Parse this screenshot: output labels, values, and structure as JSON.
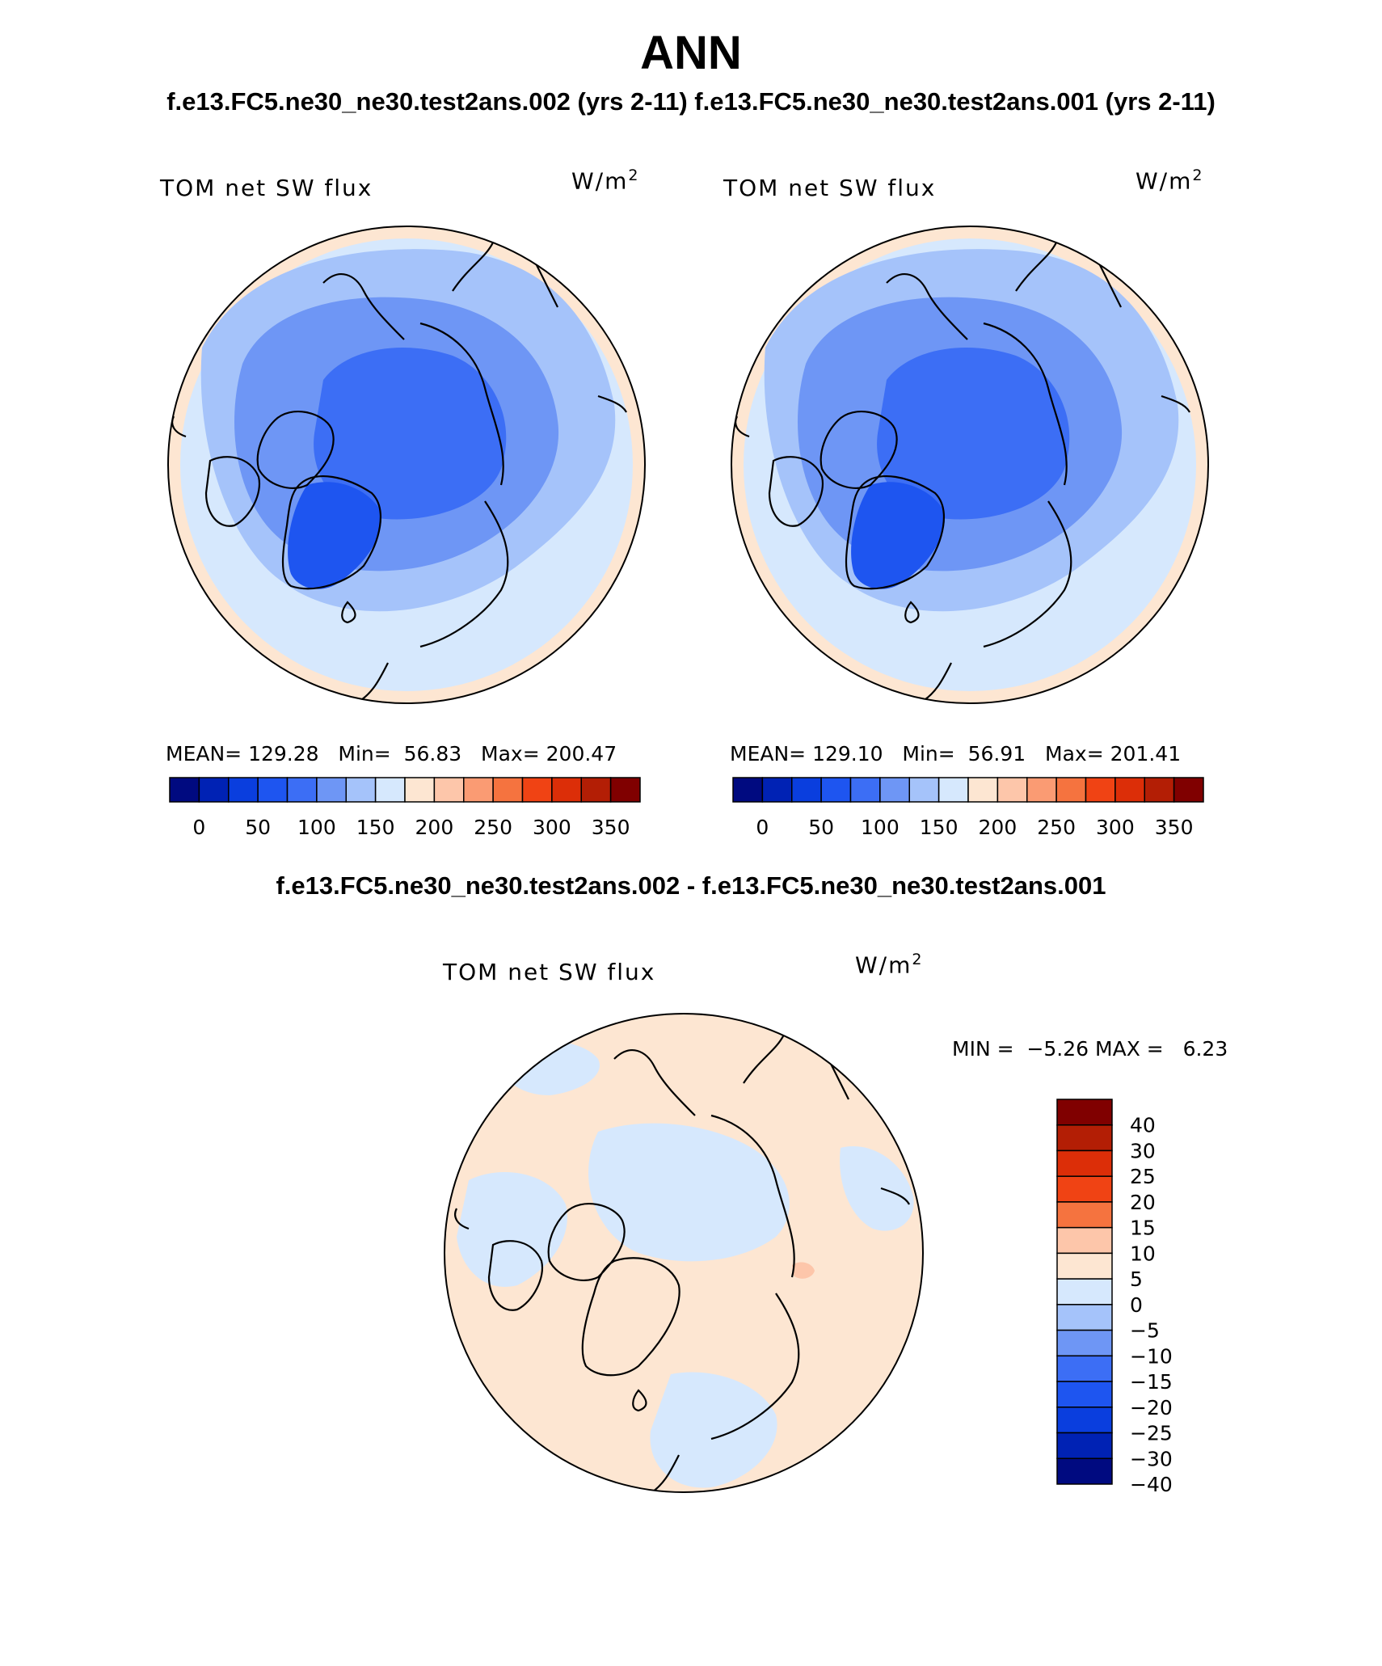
{
  "title": "ANN",
  "subtitle": "f.e13.FC5.ne30_ne30.test2ans.002 (yrs 2-11) f.e13.FC5.ne30_ne30.test2ans.001 (yrs 2-11)",
  "diff_title": "f.e13.FC5.ne30_ne30.test2ans.002 - f.e13.FC5.ne30_ne30.test2ans.001",
  "panels": [
    {
      "label": "TOM net SW flux",
      "units_base": "W/m",
      "units_exp": "2",
      "mean_label": "MEAN=",
      "mean": "129.28",
      "min_label": "Min=",
      "min": "56.83",
      "max_label": "Max=",
      "max": "200.47"
    },
    {
      "label": "TOM net SW flux",
      "units_base": "W/m",
      "units_exp": "2",
      "mean_label": "MEAN=",
      "mean": "129.10",
      "min_label": "Min=",
      "min": "56.91",
      "max_label": "Max=",
      "max": "201.41"
    }
  ],
  "diff_panel": {
    "label": "TOM net SW flux",
    "units_base": "W/m",
    "units_exp": "2",
    "min_label": "MIN =",
    "min": "−5.26",
    "max_label": "MAX =",
    "max": "6.23"
  },
  "colorbar_main": {
    "colors": [
      "#000a80",
      "#0022b4",
      "#0a3ede",
      "#1e55f0",
      "#3c6ef5",
      "#6e96f5",
      "#a5c3fa",
      "#d6e8fd",
      "#fde6d2",
      "#fdc6aa",
      "#fa9b73",
      "#f5733f",
      "#f04314",
      "#dc2e08",
      "#b31e05",
      "#800000"
    ],
    "tick_labels": [
      "0",
      "50",
      "100",
      "150",
      "200",
      "250",
      "300",
      "350"
    ]
  },
  "colorbar_diff": {
    "colors": [
      "#800000",
      "#b31e05",
      "#dc2e08",
      "#f04314",
      "#f5733f",
      "#fdc6aa",
      "#fde6d2",
      "#d6e8fd",
      "#a5c3fa",
      "#6e96f5",
      "#3c6ef5",
      "#1e55f0",
      "#0a3ede",
      "#0022b4",
      "#000a80"
    ],
    "tick_labels": [
      "40",
      "30",
      "25",
      "20",
      "15",
      "10",
      "5",
      "0",
      "−5",
      "−10",
      "−15",
      "−20",
      "−25",
      "−30",
      "−40"
    ]
  }
}
